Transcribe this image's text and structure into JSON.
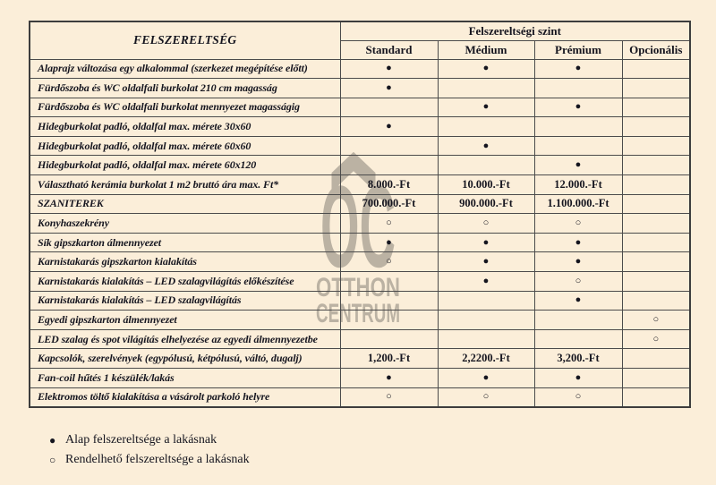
{
  "colors": {
    "background": "#fbeed9",
    "border": "#4b4b4b",
    "text": "#15151f",
    "watermark_gray": "#7d786f"
  },
  "watermark": {
    "roof_icon": "house-roof-icon",
    "initials": "OC",
    "line1": "OTTHON",
    "line2": "CENTRUM"
  },
  "table": {
    "corner_header": "FELSZERELTSÉG",
    "group_header": "Felszereltségi szint",
    "level_headers": [
      "Standard",
      "Médium",
      "Prémium",
      "Opcionális"
    ],
    "rows": [
      {
        "label": "Alaprajz változása egy alkalommal (szerkezet megépítése előtt)",
        "cells": [
          "●",
          "●",
          "●",
          ""
        ]
      },
      {
        "label": "Fürdőszoba és WC oldalfali burkolat 210 cm magasság",
        "cells": [
          "●",
          "",
          "",
          ""
        ]
      },
      {
        "label": "Fürdőszoba és WC oldalfali burkolat mennyezet magasságig",
        "cells": [
          "",
          "●",
          "●",
          ""
        ]
      },
      {
        "label": "Hidegburkolat  padló, oldalfal max. mérete 30x60",
        "cells": [
          "●",
          "",
          "",
          ""
        ]
      },
      {
        "label": "Hidegburkolat  padló, oldalfal  max. mérete 60x60",
        "cells": [
          "",
          "●",
          "",
          ""
        ]
      },
      {
        "label": "Hidegburkolat  padló, oldalfal max. mérete 60x120",
        "cells": [
          "",
          "",
          "●",
          ""
        ]
      },
      {
        "label": "Választható kerámia burkolat 1 m2 bruttó ára max. Ft*",
        "cells": [
          "8.000.-Ft",
          "10.000.-Ft",
          "12.000.-Ft",
          ""
        ]
      },
      {
        "label": "SZANITEREK",
        "cells": [
          "700.000.-Ft",
          "900.000.-Ft",
          "1.100.000.-Ft",
          ""
        ]
      },
      {
        "label": "Konyhaszekrény",
        "cells": [
          "○",
          "○",
          "○",
          ""
        ]
      },
      {
        "label": "Sík gipszkarton álmennyezet",
        "cells": [
          "●",
          "●",
          "●",
          ""
        ]
      },
      {
        "label": "Karnistakarás gipszkarton kialakítás",
        "cells": [
          "○",
          "●",
          "●",
          ""
        ]
      },
      {
        "label": "Karnistakarás kialakítás – LED szalagvilágítás előkészítése",
        "cells": [
          "",
          "●",
          "○",
          ""
        ]
      },
      {
        "label": "Karnistakarás kialakítás – LED szalagvilágítás",
        "cells": [
          "",
          "",
          "●",
          ""
        ]
      },
      {
        "label": "Egyedi gipszkarton álmennyezet",
        "cells": [
          "",
          "",
          "",
          "○"
        ]
      },
      {
        "label": "LED szalag és spot világítás elhelyezése az egyedi álmennyezetbe",
        "cells": [
          "",
          "",
          "",
          "○"
        ]
      },
      {
        "label": "Kapcsolók, szerelvények (egypólusú, kétpólusú, váltó, dugalj)",
        "cells": [
          "1,200.-Ft",
          "2,2200.-Ft",
          "3,200.-Ft",
          ""
        ]
      },
      {
        "label": "Fan-coil hűtés 1 készülék/lakás",
        "cells": [
          "●",
          "●",
          "●",
          ""
        ]
      },
      {
        "label": "Elektromos töltő kialakítása a vásárolt parkoló helyre",
        "cells": [
          "○",
          "○",
          "○",
          ""
        ]
      }
    ]
  },
  "legend": [
    {
      "symbol": "●",
      "label": "Alap felszereltsége a lakásnak"
    },
    {
      "symbol": "○",
      "label": "Rendelhető felszereltsége a lakásnak"
    }
  ]
}
